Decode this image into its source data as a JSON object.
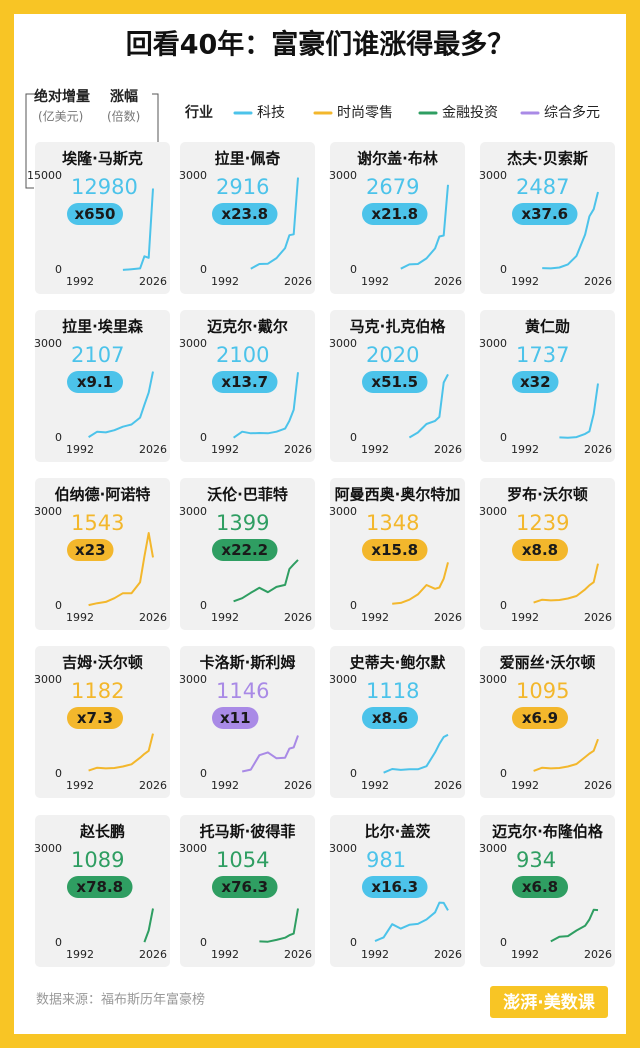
{
  "header": {
    "title": "回看40年：富豪们谁涨得最多？"
  },
  "axis_note": {
    "value_title": "绝对增量",
    "value_unit": "(亿美元)",
    "multiplier_title": "涨幅",
    "multiplier_unit": "(倍数)"
  },
  "legend": {
    "title": "行业",
    "items": [
      {
        "name": "科技",
        "color": "#4cc3ea"
      },
      {
        "name": "时尚零售",
        "color": "#f3b72c"
      },
      {
        "name": "金融投资",
        "color": "#2f9e62"
      },
      {
        "name": "综合多元",
        "color": "#a98ae6"
      }
    ]
  },
  "chart_data": [
    {
      "type": "line",
      "title": "埃隆·马斯克",
      "value": 12980,
      "multiplier": {
        "value": 650,
        "label": "x650"
      },
      "color": "#4cc3ea",
      "xlim": [
        1992,
        2026
      ],
      "xticks": [
        1992,
        2026
      ],
      "ylim": [
        0,
        15000
      ],
      "yticks": [
        0,
        15000
      ],
      "x": [
        1992,
        1996,
        2000,
        2004,
        2008,
        2012,
        2016,
        2020,
        2022,
        2024,
        2026
      ],
      "values": [
        null,
        null,
        null,
        null,
        null,
        20,
        120,
        250,
        2190,
        1950,
        13000
      ]
    },
    {
      "type": "line",
      "title": "拉里·佩奇",
      "value": 2916,
      "multiplier": {
        "value": 23.8,
        "label": "x23.8"
      },
      "color": "#4cc3ea",
      "xlim": [
        1992,
        2026
      ],
      "xticks": [
        1992,
        2026
      ],
      "ylim": [
        0,
        3000
      ],
      "yticks": [
        0,
        3000
      ],
      "x": [
        1992,
        1996,
        2000,
        2004,
        2008,
        2012,
        2016,
        2020,
        2022,
        2024,
        2026
      ],
      "values": [
        null,
        null,
        null,
        40,
        190,
        200,
        380,
        700,
        1110,
        1140,
        2950
      ]
    },
    {
      "type": "line",
      "title": "谢尔盖·布林",
      "value": 2679,
      "multiplier": {
        "value": 21.8,
        "label": "x21.8"
      },
      "color": "#4cc3ea",
      "xlim": [
        1992,
        2026
      ],
      "xticks": [
        1992,
        2026
      ],
      "ylim": [
        0,
        3000
      ],
      "yticks": [
        0,
        3000
      ],
      "x": [
        1992,
        1996,
        2000,
        2004,
        2008,
        2012,
        2016,
        2020,
        2022,
        2024,
        2026
      ],
      "values": [
        null,
        null,
        null,
        40,
        180,
        190,
        370,
        690,
        1070,
        1100,
        2720
      ]
    },
    {
      "type": "line",
      "title": "杰夫·贝索斯",
      "value": 2487,
      "multiplier": {
        "value": 37.6,
        "label": "x37.6"
      },
      "color": "#4cc3ea",
      "xlim": [
        1992,
        2026
      ],
      "xticks": [
        1992,
        2026
      ],
      "ylim": [
        0,
        3000
      ],
      "yticks": [
        0,
        3000
      ],
      "x": [
        1992,
        1996,
        2000,
        2004,
        2008,
        2012,
        2016,
        2020,
        2022,
        2024,
        2026
      ],
      "values": [
        null,
        null,
        60,
        50,
        80,
        180,
        450,
        1130,
        1710,
        1940,
        2490
      ]
    },
    {
      "type": "line",
      "title": "拉里·埃里森",
      "value": 2107,
      "multiplier": {
        "value": 9.1,
        "label": "x9.1"
      },
      "color": "#4cc3ea",
      "xlim": [
        1992,
        2026
      ],
      "xticks": [
        1992,
        2026
      ],
      "ylim": [
        0,
        3000
      ],
      "yticks": [
        0,
        3000
      ],
      "x": [
        1992,
        1996,
        2000,
        2004,
        2008,
        2012,
        2016,
        2020,
        2022,
        2024,
        2026
      ],
      "values": [
        null,
        30,
        200,
        180,
        250,
        360,
        430,
        650,
        1060,
        1450,
        2120
      ]
    },
    {
      "type": "line",
      "title": "迈克尔·戴尔",
      "value": 2100,
      "multiplier": {
        "value": 13.7,
        "label": "x13.7"
      },
      "color": "#4cc3ea",
      "xlim": [
        1992,
        2026
      ],
      "xticks": [
        1992,
        2026
      ],
      "ylim": [
        0,
        3000
      ],
      "yticks": [
        0,
        3000
      ],
      "x": [
        1992,
        1996,
        2000,
        2004,
        2008,
        2012,
        2016,
        2020,
        2022,
        2024,
        2026
      ],
      "values": [
        null,
        10,
        200,
        150,
        160,
        150,
        200,
        300,
        550,
        900,
        2100
      ]
    },
    {
      "type": "line",
      "title": "马克·扎克伯格",
      "value": 2020,
      "multiplier": {
        "value": 51.5,
        "label": "x51.5"
      },
      "color": "#4cc3ea",
      "xlim": [
        1992,
        2026
      ],
      "xticks": [
        1992,
        2026
      ],
      "ylim": [
        0,
        3000
      ],
      "yticks": [
        0,
        3000
      ],
      "x": [
        1992,
        1996,
        2000,
        2004,
        2008,
        2012,
        2016,
        2020,
        2022,
        2024,
        2026
      ],
      "values": [
        null,
        null,
        null,
        null,
        15,
        175,
        446,
        547,
        675,
        1770,
        2030
      ]
    },
    {
      "type": "line",
      "title": "黄仁勋",
      "value": 1737,
      "multiplier": {
        "value": 32,
        "label": "x32"
      },
      "color": "#4cc3ea",
      "xlim": [
        1992,
        2026
      ],
      "xticks": [
        1992,
        2026
      ],
      "ylim": [
        0,
        3000
      ],
      "yticks": [
        0,
        3000
      ],
      "x": [
        1992,
        1996,
        2000,
        2004,
        2008,
        2012,
        2016,
        2020,
        2022,
        2024,
        2026
      ],
      "values": [
        null,
        null,
        null,
        null,
        20,
        10,
        30,
        130,
        210,
        770,
        1740
      ]
    },
    {
      "type": "line",
      "title": "伯纳德·阿诺特",
      "value": 1543,
      "multiplier": {
        "value": 23,
        "label": "x23"
      },
      "color": "#f3b72c",
      "xlim": [
        1992,
        2026
      ],
      "xticks": [
        1992,
        2026
      ],
      "ylim": [
        0,
        3000
      ],
      "yticks": [
        0,
        3000
      ],
      "x": [
        1992,
        1996,
        2000,
        2004,
        2008,
        2012,
        2016,
        2020,
        2022,
        2024,
        2026
      ],
      "values": [
        null,
        30,
        90,
        130,
        250,
        410,
        410,
        760,
        1580,
        2330,
        1550
      ]
    },
    {
      "type": "line",
      "title": "沃伦·巴菲特",
      "value": 1399,
      "multiplier": {
        "value": 22.2,
        "label": "x22.2"
      },
      "color": "#2f9e62",
      "xlim": [
        1992,
        2026
      ],
      "xticks": [
        1992,
        2026
      ],
      "ylim": [
        0,
        3000
      ],
      "yticks": [
        0,
        3000
      ],
      "x": [
        1992,
        1996,
        2000,
        2004,
        2008,
        2012,
        2016,
        2020,
        2022,
        2024,
        2026
      ],
      "values": [
        null,
        150,
        250,
        420,
        580,
        440,
        610,
        675,
        1180,
        1330,
        1470
      ]
    },
    {
      "type": "line",
      "title": "阿曼西奥·奥尔特加",
      "value": 1348,
      "multiplier": {
        "value": 15.8,
        "label": "x15.8"
      },
      "color": "#f3b72c",
      "xlim": [
        1992,
        2026
      ],
      "xticks": [
        1992,
        2026
      ],
      "ylim": [
        0,
        3000
      ],
      "yticks": [
        0,
        3000
      ],
      "x": [
        1992,
        1996,
        2000,
        2004,
        2008,
        2012,
        2016,
        2020,
        2022,
        2024,
        2026
      ],
      "values": [
        null,
        null,
        70,
        100,
        200,
        370,
        670,
        550,
        590,
        870,
        1390
      ]
    },
    {
      "type": "line",
      "title": "罗布·沃尔顿",
      "value": 1239,
      "multiplier": {
        "value": 8.8,
        "label": "x8.8"
      },
      "color": "#f3b72c",
      "xlim": [
        1992,
        2026
      ],
      "xticks": [
        1992,
        2026
      ],
      "ylim": [
        0,
        3000
      ],
      "yticks": [
        0,
        3000
      ],
      "x": [
        1992,
        1996,
        2000,
        2004,
        2008,
        2012,
        2016,
        2020,
        2022,
        2024,
        2026
      ],
      "values": [
        null,
        110,
        200,
        180,
        190,
        240,
        320,
        530,
        660,
        760,
        1350
      ]
    },
    {
      "type": "line",
      "title": "吉姆·沃尔顿",
      "value": 1182,
      "multiplier": {
        "value": 7.3,
        "label": "x7.3"
      },
      "color": "#f3b72c",
      "xlim": [
        1992,
        2026
      ],
      "xticks": [
        1992,
        2026
      ],
      "ylim": [
        0,
        3000
      ],
      "yticks": [
        0,
        3000
      ],
      "x": [
        1992,
        1996,
        2000,
        2004,
        2008,
        2012,
        2016,
        2020,
        2022,
        2024,
        2026
      ],
      "values": [
        null,
        110,
        200,
        180,
        190,
        240,
        310,
        520,
        640,
        740,
        1290
      ]
    },
    {
      "type": "line",
      "title": "卡洛斯·斯利姆",
      "value": 1146,
      "multiplier": {
        "value": 11,
        "label": "x11"
      },
      "color": "#a98ae6",
      "xlim": [
        1992,
        2026
      ],
      "xticks": [
        1992,
        2026
      ],
      "ylim": [
        0,
        3000
      ],
      "yticks": [
        0,
        3000
      ],
      "x": [
        1992,
        1996,
        2000,
        2004,
        2008,
        2012,
        2016,
        2020,
        2022,
        2024,
        2026
      ],
      "values": [
        null,
        null,
        80,
        140,
        600,
        690,
        500,
        520,
        810,
        850,
        1230
      ]
    },
    {
      "type": "line",
      "title": "史蒂夫·鲍尔默",
      "value": 1118,
      "multiplier": {
        "value": 8.6,
        "label": "x8.6"
      },
      "color": "#4cc3ea",
      "xlim": [
        1992,
        2026
      ],
      "xticks": [
        1992,
        2026
      ],
      "ylim": [
        0,
        3000
      ],
      "yticks": [
        0,
        3000
      ],
      "x": [
        1992,
        1996,
        2000,
        2004,
        2008,
        2012,
        2016,
        2020,
        2022,
        2024,
        2026
      ],
      "values": [
        null,
        40,
        160,
        130,
        150,
        150,
        250,
        690,
        960,
        1180,
        1250
      ]
    },
    {
      "type": "line",
      "title": "爱丽丝·沃尔顿",
      "value": 1095,
      "multiplier": {
        "value": 6.9,
        "label": "x6.9"
      },
      "color": "#f3b72c",
      "xlim": [
        1992,
        2026
      ],
      "xticks": [
        1992,
        2026
      ],
      "ylim": [
        0,
        3000
      ],
      "yticks": [
        0,
        3000
      ],
      "x": [
        1992,
        1996,
        2000,
        2004,
        2008,
        2012,
        2016,
        2020,
        2022,
        2024,
        2026
      ],
      "values": [
        null,
        100,
        200,
        180,
        190,
        240,
        320,
        540,
        650,
        740,
        1110
      ]
    },
    {
      "type": "line",
      "title": "赵长鹏",
      "value": 1089,
      "multiplier": {
        "value": 78.8,
        "label": "x78.8"
      },
      "color": "#2f9e62",
      "xlim": [
        1992,
        2026
      ],
      "xticks": [
        1992,
        2026
      ],
      "ylim": [
        0,
        3000
      ],
      "yticks": [
        0,
        3000
      ],
      "x": [
        1992,
        1996,
        2000,
        2004,
        2008,
        2012,
        2016,
        2020,
        2022,
        2024,
        2026
      ],
      "values": [
        null,
        null,
        null,
        null,
        null,
        null,
        null,
        null,
        30,
        400,
        1100
      ]
    },
    {
      "type": "line",
      "title": "托马斯·彼得菲",
      "value": 1054,
      "multiplier": {
        "value": 76.3,
        "label": "x76.3"
      },
      "color": "#2f9e62",
      "xlim": [
        1992,
        2026
      ],
      "xticks": [
        1992,
        2026
      ],
      "ylim": [
        0,
        3000
      ],
      "yticks": [
        0,
        3000
      ],
      "x": [
        1992,
        1996,
        2000,
        2004,
        2008,
        2012,
        2016,
        2020,
        2022,
        2024,
        2026
      ],
      "values": [
        null,
        null,
        null,
        null,
        50,
        40,
        100,
        170,
        250,
        300,
        1100
      ]
    },
    {
      "type": "line",
      "title": "比尔·盖茨",
      "value": 981,
      "multiplier": {
        "value": 16.3,
        "label": "x16.3"
      },
      "color": "#4cc3ea",
      "xlim": [
        1992,
        2026
      ],
      "xticks": [
        1992,
        2026
      ],
      "ylim": [
        0,
        3000
      ],
      "yticks": [
        0,
        3000
      ],
      "x": [
        1992,
        1996,
        2000,
        2004,
        2008,
        2012,
        2016,
        2020,
        2022,
        2024,
        2026
      ],
      "values": [
        60,
        180,
        600,
        460,
        580,
        610,
        750,
        980,
        1290,
        1280,
        1040
      ]
    },
    {
      "type": "line",
      "title": "迈克尔·布隆伯格",
      "value": 934,
      "multiplier": {
        "value": 6.8,
        "label": "x6.8"
      },
      "color": "#2f9e62",
      "xlim": [
        1992,
        2026
      ],
      "xticks": [
        1992,
        2026
      ],
      "ylim": [
        0,
        3000
      ],
      "yticks": [
        0,
        3000
      ],
      "x": [
        1992,
        1996,
        2000,
        2004,
        2008,
        2012,
        2016,
        2020,
        2022,
        2024,
        2026
      ],
      "values": [
        null,
        null,
        null,
        50,
        200,
        220,
        400,
        550,
        750,
        1060,
        1050
      ]
    }
  ],
  "footer": {
    "source": "数据来源：福布斯历年富豪榜",
    "logo": "澎湃·美数课"
  }
}
